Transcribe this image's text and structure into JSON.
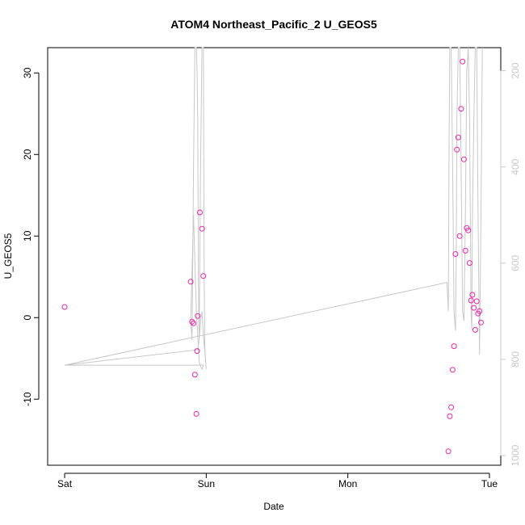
{
  "chart_data": {
    "type": "scatter",
    "title": "ATOM4 Northeast_Pacific_2 U_GEOS5",
    "xlabel": "Date",
    "ylabel": "U_GEOS5",
    "x_axis": {
      "type": "time",
      "ticks": [
        {
          "label": "Sat",
          "day": 0
        },
        {
          "label": "Sun",
          "day": 1
        },
        {
          "label": "Mon",
          "day": 2
        },
        {
          "label": "Tue",
          "day": 3
        }
      ],
      "range_days": [
        -0.12,
        3.08
      ]
    },
    "y_left": {
      "ticks": [
        -10,
        0,
        10,
        20,
        30
      ],
      "ylim": [
        -18.1,
        33.1
      ]
    },
    "y_right": {
      "label": "",
      "reversed": true,
      "ticks": [
        200,
        400,
        600,
        800,
        1000
      ],
      "ylim": [
        1020,
        152
      ]
    },
    "colors": {
      "points": "#ee22aa",
      "pressure_line": "#c8c8c8",
      "right_axis": "#c8c8c8"
    },
    "series": [
      {
        "kind": "points",
        "axis": "left",
        "x_days": [
          0.0,
          0.89,
          0.9,
          0.91,
          0.92,
          0.93,
          0.935,
          0.94,
          0.955,
          0.97,
          0.98,
          2.71,
          2.72,
          2.73,
          2.74,
          2.75,
          2.76,
          2.77,
          2.78,
          2.79,
          2.8,
          2.81,
          2.82,
          2.83,
          2.84,
          2.85,
          2.86,
          2.87,
          2.88,
          2.89,
          2.9,
          2.91,
          2.92,
          2.93,
          2.94
        ],
        "y": [
          1.3,
          4.4,
          -0.5,
          -0.7,
          -7.0,
          -11.8,
          -4.1,
          0.2,
          12.9,
          10.9,
          5.1,
          -16.4,
          -12.1,
          -11.0,
          -6.4,
          -3.5,
          7.8,
          20.6,
          22.1,
          10.0,
          25.6,
          31.4,
          19.4,
          8.2,
          11.0,
          10.7,
          6.7,
          2.1,
          2.8,
          1.2,
          -1.5,
          2.0,
          0.5,
          0.8,
          -0.6
        ]
      },
      {
        "kind": "line",
        "axis": "right",
        "name": "",
        "x_days": [
          0.0,
          0.98,
          0.97,
          0.96,
          0.95,
          0.93,
          0.91,
          0.89,
          0.9,
          0.91,
          0.92,
          0.93,
          0.935,
          0.94,
          0.945,
          0.95,
          0.96,
          0.97,
          0.98,
          0.985,
          0.99,
          1.0,
          0.98,
          0.97,
          0.96,
          0.95,
          0.94,
          0.0,
          2.7,
          2.71,
          2.715,
          2.72,
          2.73,
          2.74,
          2.75,
          2.76,
          2.765,
          2.77,
          2.78,
          2.79,
          2.8,
          2.81,
          2.82,
          2.83,
          2.84,
          2.85,
          2.86,
          2.87,
          2.875,
          2.88,
          2.89,
          2.9,
          2.91,
          2.92,
          2.93,
          2.94,
          2.95
        ],
        "y": [
          812,
          812,
          820,
          815,
          805,
          700,
          500,
          720,
          760,
          400,
          100,
          90,
          200,
          300,
          650,
          760,
          400,
          100,
          90,
          600,
          780,
          820,
          750,
          700,
          720,
          760,
          780,
          812,
          640,
          700,
          350,
          100,
          90,
          400,
          700,
          740,
          600,
          300,
          100,
          90,
          400,
          700,
          720,
          500,
          200,
          90,
          300,
          700,
          740,
          500,
          300,
          100,
          90,
          500,
          790,
          500,
          90
        ]
      }
    ]
  }
}
